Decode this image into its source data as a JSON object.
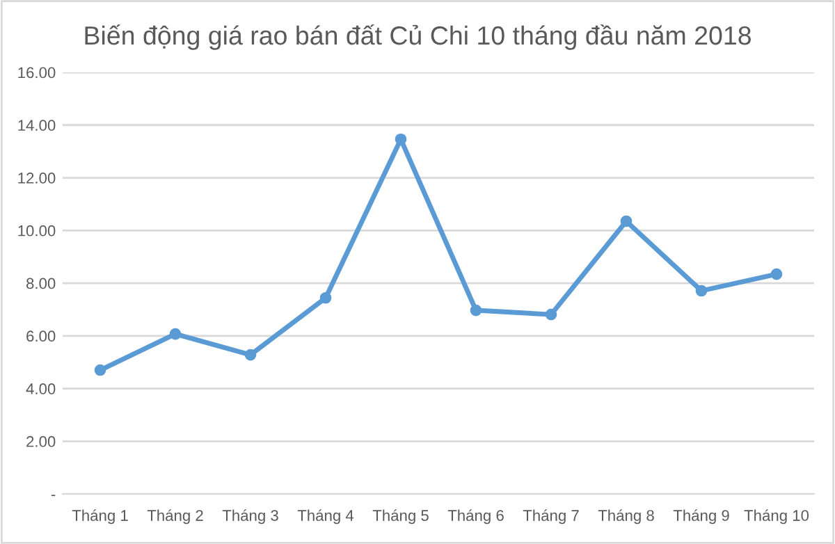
{
  "chart_data": {
    "type": "line",
    "title": "Biến động giá rao bán đất Củ Chi 10 tháng đầu năm 2018",
    "categories": [
      "Tháng 1",
      "Tháng 2",
      "Tháng 3",
      "Tháng 4",
      "Tháng 5",
      "Tháng 6",
      "Tháng 7",
      "Tháng 8",
      "Tháng 9",
      "Tháng 10"
    ],
    "series": [
      {
        "color": "#5b9bd5",
        "values": [
          4.7,
          6.07,
          5.28,
          7.44,
          13.46,
          6.97,
          6.81,
          10.35,
          7.71,
          8.34
        ]
      }
    ],
    "ylim": [
      0,
      16
    ],
    "yticks": [
      {
        "value": 0,
        "label": "-"
      },
      {
        "value": 2,
        "label": "2.00"
      },
      {
        "value": 4,
        "label": "4.00"
      },
      {
        "value": 6,
        "label": "6.00"
      },
      {
        "value": 8,
        "label": "8.00"
      },
      {
        "value": 10,
        "label": "10.00"
      },
      {
        "value": 12,
        "label": "12.00"
      },
      {
        "value": 14,
        "label": "14.00"
      },
      {
        "value": 16,
        "label": "16.00"
      }
    ],
    "grid": "y",
    "marker": "circle",
    "line_style": "solid"
  }
}
